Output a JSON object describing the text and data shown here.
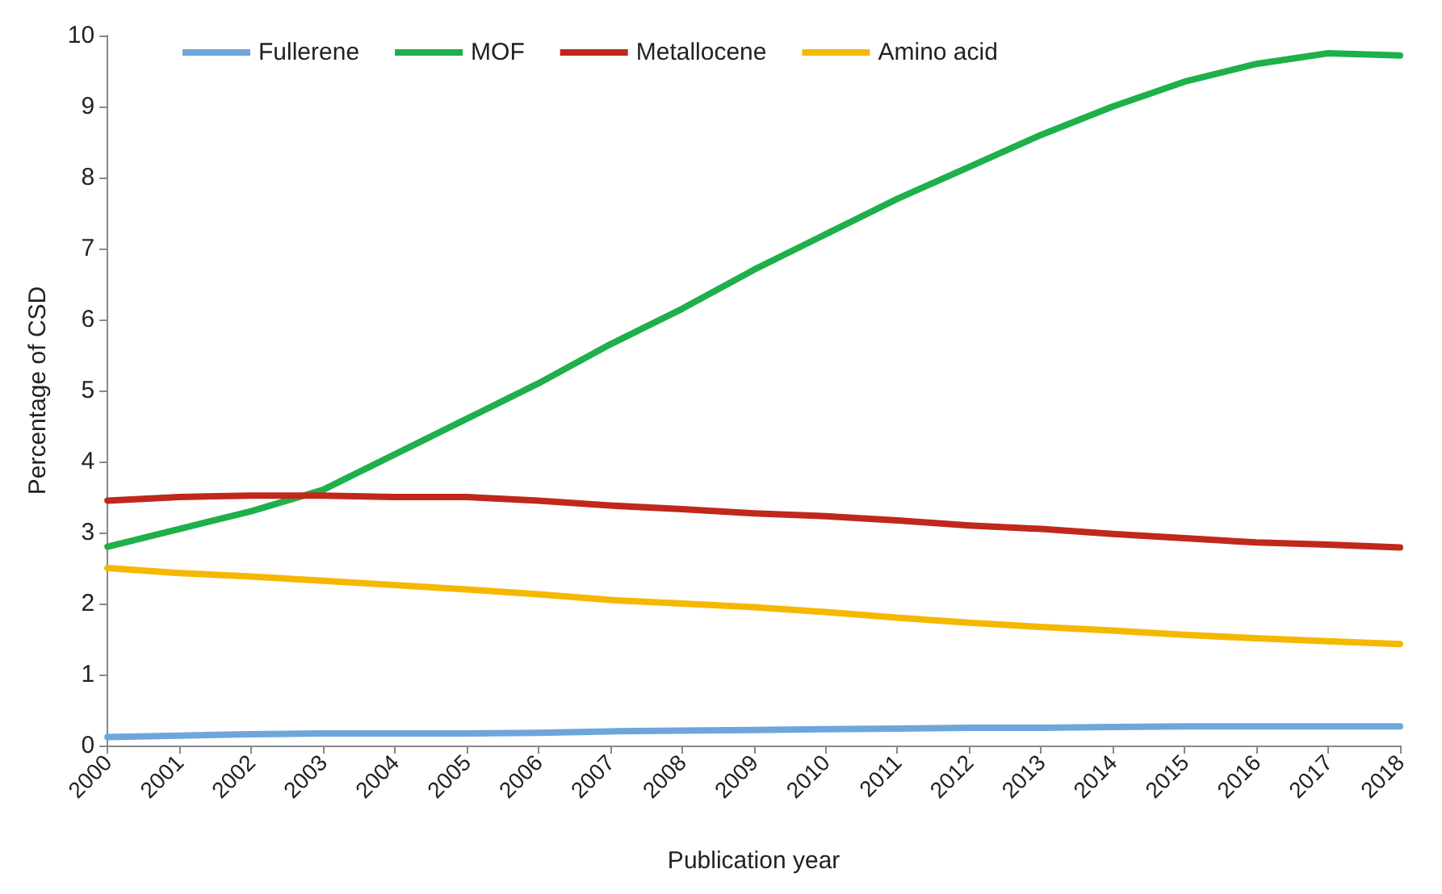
{
  "chart_data": {
    "type": "line",
    "xlabel": "Publication year",
    "ylabel": "Percentage of CSD",
    "categories": [
      "2000",
      "2001",
      "2002",
      "2003",
      "2004",
      "2005",
      "2006",
      "2007",
      "2008",
      "2009",
      "2010",
      "2011",
      "2012",
      "2013",
      "2014",
      "2015",
      "2016",
      "2017",
      "2018"
    ],
    "series": [
      {
        "name": "Fullerene",
        "color": "#6ea6dc",
        "values": [
          0.12,
          0.14,
          0.16,
          0.17,
          0.17,
          0.17,
          0.18,
          0.2,
          0.21,
          0.22,
          0.23,
          0.24,
          0.25,
          0.25,
          0.26,
          0.27,
          0.27,
          0.27,
          0.27
        ]
      },
      {
        "name": "MOF",
        "color": "#1eb04a",
        "values": [
          2.8,
          3.05,
          3.3,
          3.6,
          4.1,
          4.6,
          5.1,
          5.65,
          6.15,
          6.7,
          7.2,
          7.7,
          8.15,
          8.6,
          9.0,
          9.35,
          9.6,
          9.75,
          9.72
        ]
      },
      {
        "name": "Metallocene",
        "color": "#c0281c",
        "values": [
          3.45,
          3.5,
          3.52,
          3.52,
          3.5,
          3.5,
          3.45,
          3.38,
          3.33,
          3.27,
          3.23,
          3.17,
          3.1,
          3.05,
          2.98,
          2.92,
          2.86,
          2.83,
          2.79
        ]
      },
      {
        "name": "Amino acid",
        "color": "#f5b800",
        "values": [
          2.5,
          2.43,
          2.38,
          2.32,
          2.26,
          2.2,
          2.13,
          2.05,
          2.0,
          1.95,
          1.88,
          1.8,
          1.73,
          1.67,
          1.62,
          1.56,
          1.51,
          1.47,
          1.43
        ]
      }
    ],
    "ylim": [
      0,
      10
    ],
    "yticks": [
      0,
      1,
      2,
      3,
      4,
      5,
      6,
      7,
      8,
      9,
      10
    ],
    "grid": false,
    "legend": "top left",
    "marker": "none",
    "line_style": "solid"
  }
}
